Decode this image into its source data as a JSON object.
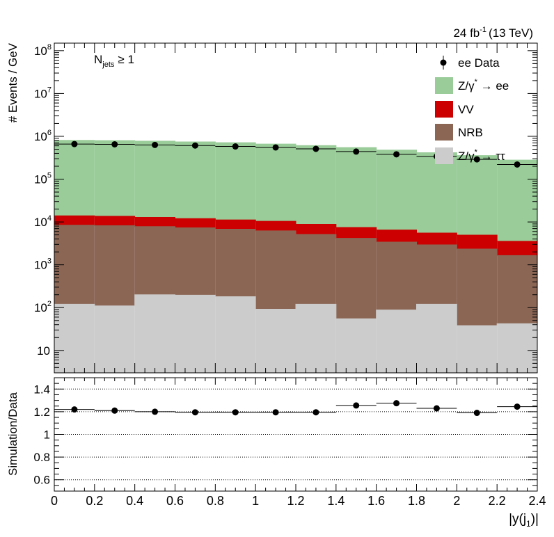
{
  "lumi": {
    "value": "24 fb",
    "exp": "-1",
    "energy": "(13 TeV)"
  },
  "selection": {
    "main": "N",
    "sub": "jets",
    "rest": "≥ 1"
  },
  "top": {
    "ylabel": "# Events / GeV",
    "log": true,
    "ylim": [
      3,
      150000000
    ],
    "tick_labels": [
      {
        "v": 10,
        "base": "10",
        "exp": ""
      },
      {
        "v": 100,
        "base": "10",
        "exp": "2"
      },
      {
        "v": 1000,
        "base": "10",
        "exp": "3"
      },
      {
        "v": 10000,
        "base": "10",
        "exp": "4"
      },
      {
        "v": 100000,
        "base": "10",
        "exp": "5"
      },
      {
        "v": 1000000,
        "base": "10",
        "exp": "6"
      },
      {
        "v": 10000000,
        "base": "10",
        "exp": "7"
      },
      {
        "v": 100000000,
        "base": "10",
        "exp": "8"
      }
    ]
  },
  "legend": [
    {
      "id": "data",
      "main": "ee Data",
      "sup": "",
      "tail": "",
      "marker": "point",
      "color": "#000000"
    },
    {
      "id": "zee",
      "main": "Z/γ",
      "sup": "*",
      "tail": " → ee",
      "marker": "box",
      "color": "#99cc99"
    },
    {
      "id": "vv",
      "main": "VV",
      "sup": "",
      "tail": "",
      "marker": "box",
      "color": "#cc0000"
    },
    {
      "id": "nrb",
      "main": "NRB",
      "sup": "",
      "tail": "",
      "marker": "box",
      "color": "#8b6655"
    },
    {
      "id": "ztt",
      "main": "Z/γ",
      "sup": "*",
      "tail": " → ττ",
      "marker": "box",
      "color": "#cccccc"
    }
  ],
  "ratio": {
    "ylabel": "Simulation/Data",
    "ylim": [
      0.5,
      1.5
    ],
    "ticks": [
      0.6,
      0.8,
      1,
      1.2,
      1.4
    ],
    "tick_labels": [
      "0.6",
      "0.8",
      "1",
      "1.2",
      "1.4"
    ],
    "values": [
      1.22,
      1.21,
      1.2,
      1.195,
      1.195,
      1.195,
      1.195,
      1.255,
      1.275,
      1.23,
      1.19,
      1.245
    ]
  },
  "xaxis": {
    "label_main": "|y(j",
    "label_sub": "1",
    "label_end": ")|",
    "xlim": [
      0,
      2.4
    ],
    "ticks": [
      0,
      0.2,
      0.4,
      0.6,
      0.8,
      1,
      1.2,
      1.4,
      1.6,
      1.8,
      2,
      2.2,
      2.4
    ],
    "tick_labels": [
      "0",
      "0.2",
      "0.4",
      "0.6",
      "0.8",
      "1",
      "1.2",
      "1.4",
      "1.6",
      "1.8",
      "2",
      "2.2",
      "2.4"
    ]
  },
  "chart_data": {
    "type": "bar",
    "stacked": true,
    "bin_edges": [
      0,
      0.2,
      0.4,
      0.6,
      0.8,
      1.0,
      1.2,
      1.4,
      1.6,
      1.8,
      2.0,
      2.2,
      2.4
    ],
    "series": [
      {
        "name": "Z/γ* → ττ",
        "color": "#cccccc",
        "values": [
          120,
          110,
          200,
          195,
          180,
          92,
          120,
          55,
          88,
          120,
          38,
          42
        ]
      },
      {
        "name": "NRB",
        "color": "#8b6655",
        "values": [
          8300,
          8100,
          7600,
          7100,
          6600,
          6100,
          5000,
          4100,
          3300,
          2800,
          2300,
          1600
        ]
      },
      {
        "name": "VV",
        "color": "#cc0000",
        "values": [
          5500,
          5400,
          5000,
          4700,
          4400,
          4200,
          3700,
          3300,
          3100,
          2600,
          2600,
          1900
        ]
      },
      {
        "name": "Z/γ* → ee",
        "color": "#99cc99",
        "values": [
          790000,
          780000,
          760000,
          730000,
          700000,
          650000,
          600000,
          540000,
          470000,
          410000,
          350000,
          275000
        ]
      }
    ],
    "data": {
      "name": "ee Data",
      "x": [
        0.1,
        0.3,
        0.5,
        0.7,
        0.9,
        1.1,
        1.3,
        1.5,
        1.7,
        1.9,
        2.1,
        2.3
      ],
      "values": [
        660000,
        650000,
        630000,
        610000,
        580000,
        550000,
        510000,
        440000,
        380000,
        340000,
        290000,
        220000
      ]
    }
  }
}
